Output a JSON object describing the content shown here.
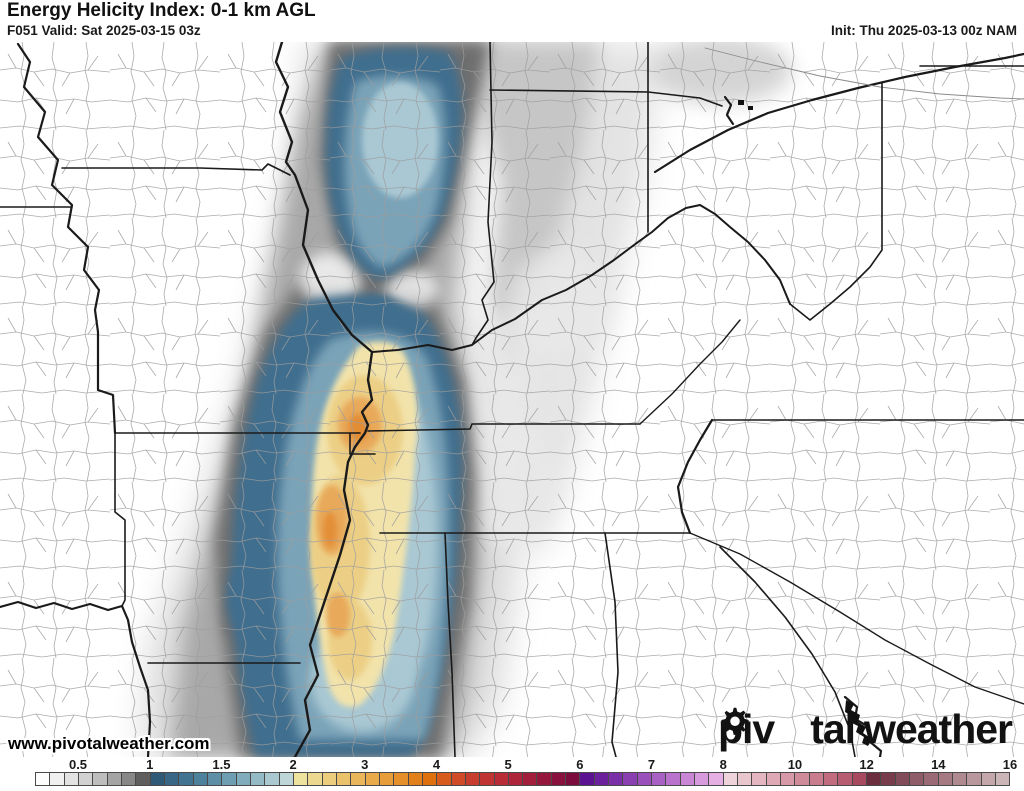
{
  "header": {
    "title": "Energy Helicity Index: 0-1 km AGL",
    "valid_label": "F051 Valid: Sat 2025-03-15 03z",
    "init_label": "Init: Thu 2025-03-13 00z NAM"
  },
  "map": {
    "watermark": "www.pivotalweather.com",
    "logo": {
      "part1": "piv",
      "part2": "tal",
      "part3": "weather"
    }
  },
  "colorbar": {
    "tick_labels": [
      "0.5",
      "1",
      "1.5",
      "2",
      "3",
      "4",
      "5",
      "6",
      "7",
      "8",
      "10",
      "12",
      "14",
      "16"
    ],
    "tick_cell_index": [
      3,
      8,
      13,
      18,
      23,
      28,
      33,
      38,
      43,
      48,
      53,
      58,
      63,
      68
    ],
    "outline_color": "#4a4a4a",
    "cell_colors": [
      "#fdfdfd",
      "#f0f0f0",
      "#e2e2e2",
      "#d1d1d1",
      "#bdbdbd",
      "#a4a4a4",
      "#878787",
      "#5e5e5e",
      "#2e5a78",
      "#376785",
      "#417490",
      "#4e829c",
      "#5d90a7",
      "#6e9eb1",
      "#80acbb",
      "#94bac5",
      "#a9c8cf",
      "#bfd6d9",
      "#ede29e",
      "#ecd88e",
      "#ebcd7d",
      "#eac26c",
      "#e9b65b",
      "#e8aa4a",
      "#e69d3a",
      "#e48f2a",
      "#e2801b",
      "#df700e",
      "#d85b1e",
      "#d04b28",
      "#c83e2e",
      "#c03433",
      "#b72c37",
      "#ad253a",
      "#a21e3c",
      "#96173d",
      "#89113d",
      "#7b0c3c",
      "#5c1391",
      "#6b219c",
      "#7a30a7",
      "#8a40b1",
      "#9950bb",
      "#a961c4",
      "#b973cd",
      "#c886d5",
      "#d79add",
      "#e5afe4",
      "#eed3da",
      "#e9c5ce",
      "#e4b6c1",
      "#dea8b4",
      "#d799a7",
      "#d08b9a",
      "#c97c8d",
      "#c16d7f",
      "#b85d71",
      "#a74a60",
      "#6b2e3f",
      "#773d4d",
      "#834c5b",
      "#8f5c69",
      "#9a6b76",
      "#a57a83",
      "#af8990",
      "#b9989d",
      "#c3a7aa",
      "#ccb5b7"
    ]
  },
  "map_palette": {
    "gray_light": "#d9d9d9",
    "gray_mid": "#a8a8a8",
    "gray_dark": "#6e6e6e",
    "blue_dark": "#3f6e8e",
    "blue_mid": "#7aa3b8",
    "blue_light": "#a9c8d3",
    "yellow": "#f2e3ab",
    "yellow_deep": "#eccf85",
    "orange": "#e8a95a",
    "orange_deep": "#e2882f"
  }
}
